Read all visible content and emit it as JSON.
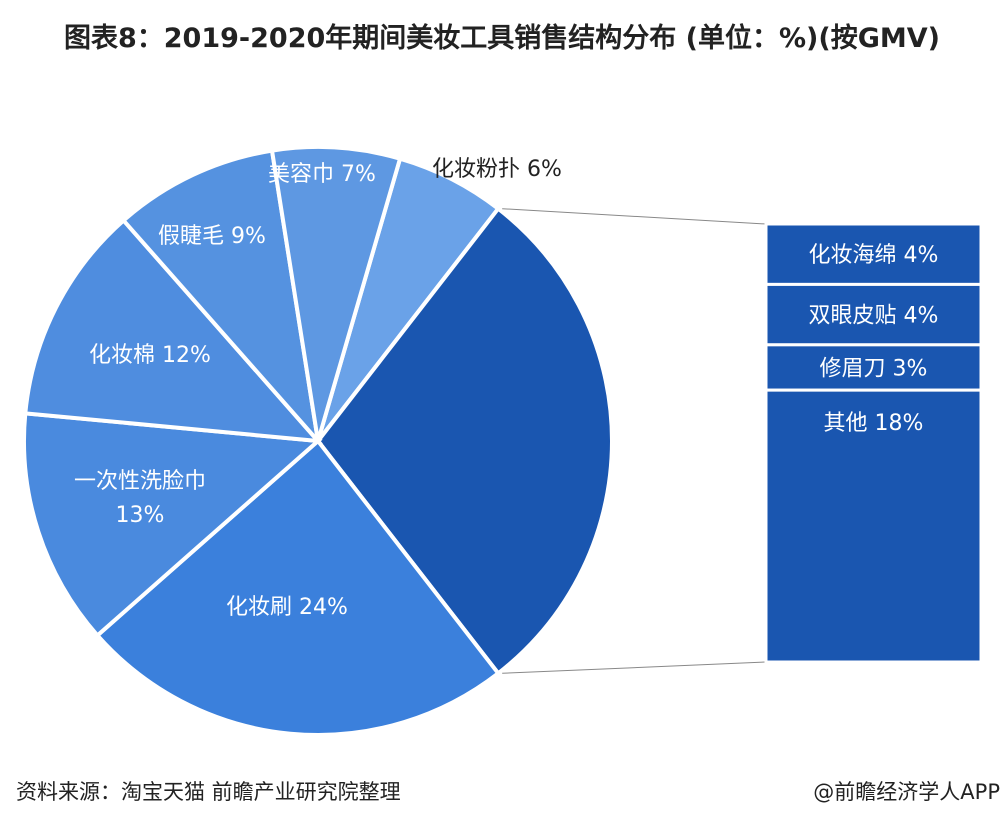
{
  "chart_data": {
    "type": "pie",
    "subtype": "bar-of-pie",
    "title": "图表8：2019-2020年期间美妆工具销售结构分布 (单位：%)(按GMV)",
    "unit": "%",
    "pie": [
      {
        "label": "化妆粉扑",
        "value": 6,
        "display": "化妆粉扑 6%",
        "color": "#6aa2e8"
      },
      {
        "label": "其他合计",
        "value": 29,
        "display": "",
        "color": "#1a56b0"
      },
      {
        "label": "化妆刷",
        "value": 24,
        "display": "化妆刷 24%",
        "color": "#3b80dc"
      },
      {
        "label": "一次性洗脸巾",
        "value": 13,
        "display": "一次性洗脸巾",
        "display2": "13%",
        "color": "#4a8ade"
      },
      {
        "label": "化妆棉",
        "value": 12,
        "display": "化妆棉 12%",
        "color": "#4f8ddf"
      },
      {
        "label": "假睫毛",
        "value": 9,
        "display": "假睫毛 9%",
        "color": "#5592e0"
      },
      {
        "label": "美容巾",
        "value": 7,
        "display": "美容巾 7%",
        "color": "#5e98e2"
      }
    ],
    "bar": [
      {
        "label": "化妆海绵",
        "value": 4,
        "display": "化妆海绵 4%"
      },
      {
        "label": "双眼皮贴",
        "value": 4,
        "display": "双眼皮贴 4%"
      },
      {
        "label": "修眉刀",
        "value": 3,
        "display": "修眉刀 3%"
      },
      {
        "label": "其他",
        "value": 18,
        "display": "其他 18%"
      }
    ],
    "bar_color": "#1a56b0"
  },
  "footer": {
    "source": "资料来源：淘宝天猫 前瞻产业研究院整理",
    "credit": "@前瞻经济学人APP"
  }
}
